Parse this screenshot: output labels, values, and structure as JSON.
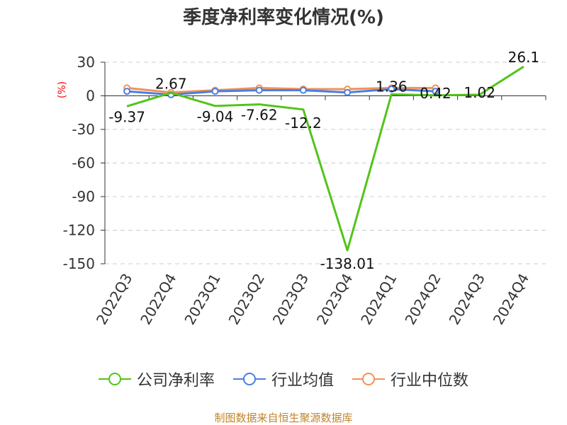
{
  "chart_data": {
    "type": "line",
    "title": "季度净利率变化情况(%)",
    "ylabel": "(%)",
    "categories": [
      "2022Q3",
      "2022Q4",
      "2023Q1",
      "2023Q2",
      "2023Q3",
      "2023Q4",
      "2024Q1",
      "2024Q2",
      "2024Q3",
      "2024Q4"
    ],
    "ylim": [
      -150,
      30
    ],
    "yticks": [
      30,
      0,
      -30,
      -60,
      -90,
      -120,
      -150
    ],
    "grid": true,
    "legend_position": "bottom",
    "series": [
      {
        "name": "公司净利率",
        "color": "#52c41a",
        "values": [
          -9.37,
          2.67,
          -9.04,
          -7.62,
          -12.2,
          -138.01,
          1.36,
          0.42,
          1.02,
          26.1
        ],
        "labels": [
          "-9.37",
          "2.67",
          "-9.04",
          "-7.62",
          "-12.2",
          "-138.01",
          "1.36",
          "0.42",
          "1.02",
          "26.1"
        ]
      },
      {
        "name": "行业均值",
        "color": "#4a7fe0",
        "values": [
          4,
          1,
          4,
          5,
          5,
          3,
          6,
          4,
          null,
          null
        ]
      },
      {
        "name": "行业中位数",
        "color": "#f0915a",
        "values": [
          7,
          3,
          5,
          7,
          6,
          6,
          7,
          7,
          null,
          null
        ]
      }
    ]
  },
  "source": "制图数据来自恒生聚源数据库"
}
